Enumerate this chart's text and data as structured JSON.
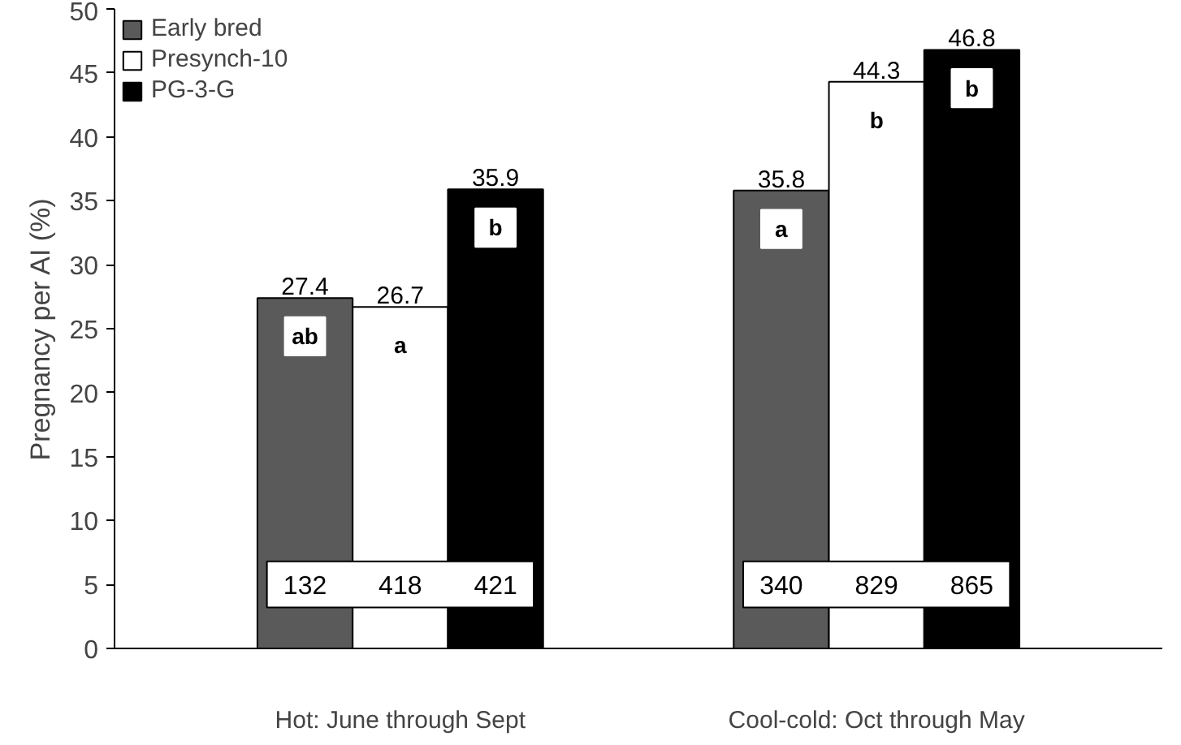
{
  "chart_data": {
    "type": "bar",
    "ylabel": "Pregnancy per AI (%)",
    "categories": [
      "Hot: June through Sept",
      "Cool-cold: Oct through May"
    ],
    "series": [
      {
        "name": "Early bred",
        "color": "#5a5a5a",
        "values": [
          27.4,
          35.8
        ]
      },
      {
        "name": "Presynch-10",
        "color": "#ffffff",
        "values": [
          26.7,
          44.3
        ]
      },
      {
        "name": "PG-3-G",
        "color": "#000000",
        "values": [
          35.9,
          46.8
        ]
      }
    ],
    "ylim": [
      0,
      50
    ],
    "yticks": [
      0,
      5,
      10,
      15,
      20,
      25,
      30,
      35,
      40,
      45,
      50
    ],
    "data_labels": true,
    "legend": "top left",
    "grid": false,
    "annotations": [
      "ab",
      "a",
      "b",
      "a",
      "b",
      "b",
      "132",
      "418",
      "421",
      "340",
      "829",
      "865"
    ]
  }
}
